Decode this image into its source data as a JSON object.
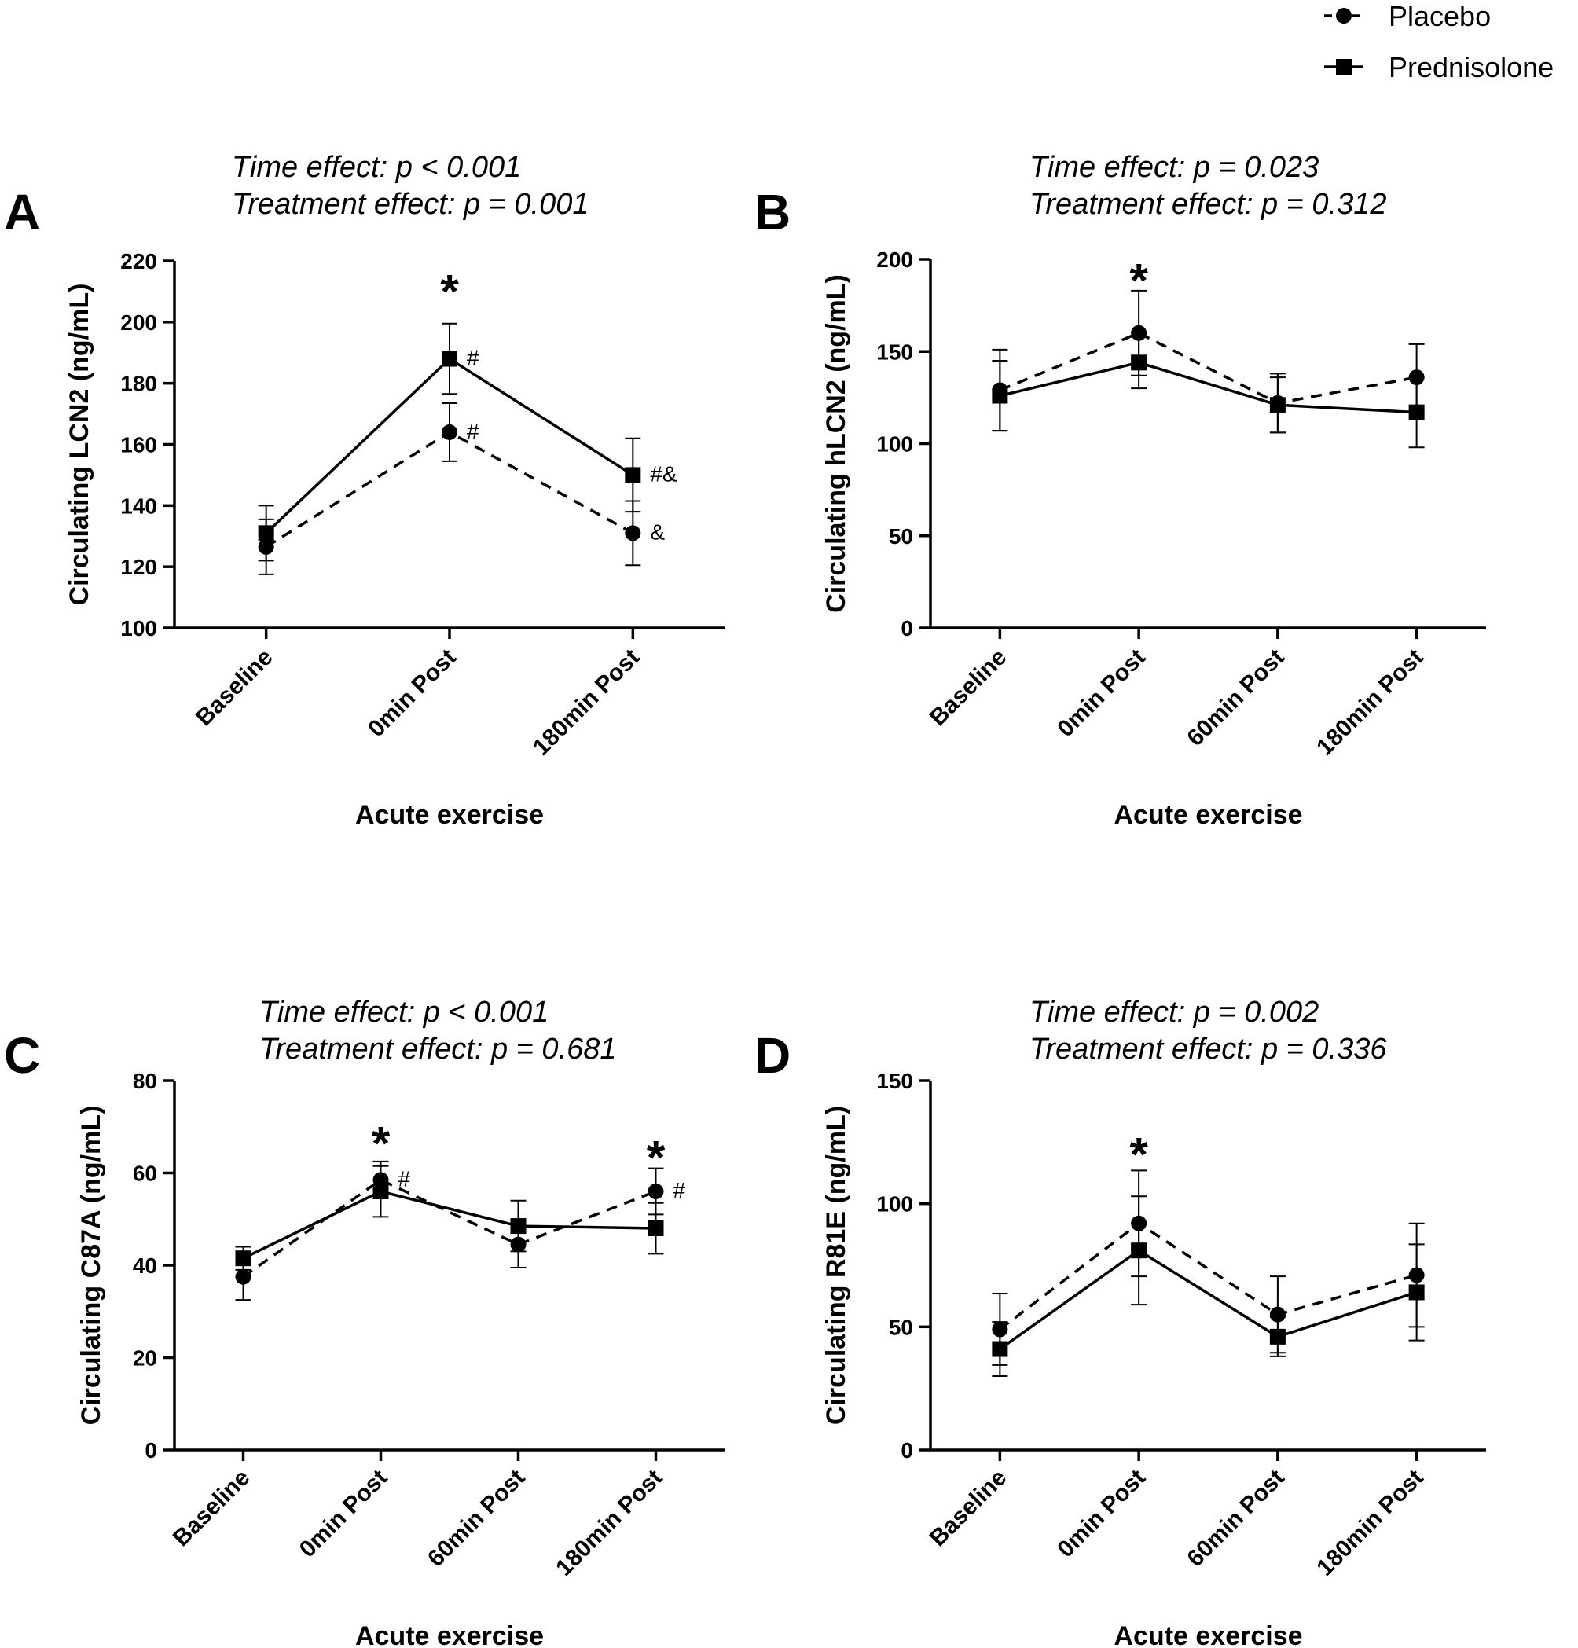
{
  "legend": [
    {
      "name": "Placebo",
      "marker": "circle",
      "line": "dashed"
    },
    {
      "name": "Prednisolone",
      "marker": "square",
      "line": "solid"
    }
  ],
  "chart_data": [
    {
      "panel": "A",
      "type": "line",
      "stats": [
        "Time effect: p < 0.001",
        "Treatment effect: p = 0.001"
      ],
      "ylabel": "Circulating LCN2 (ng/mL)",
      "xlabel": "Acute exercise",
      "categories": [
        "Baseline",
        "0min Post",
        "180min Post"
      ],
      "ylim": [
        100,
        220
      ],
      "yticks": [
        100,
        120,
        140,
        160,
        180,
        200,
        220
      ],
      "series": [
        {
          "name": "Placebo",
          "values": [
            126.5,
            164,
            131
          ],
          "err": [
            9,
            9.5,
            10.5
          ]
        },
        {
          "name": "Prednisolone",
          "values": [
            131,
            188,
            150
          ],
          "err": [
            9,
            11.5,
            12
          ]
        }
      ],
      "stars": [
        {
          "cat": 1,
          "y": 214
        }
      ],
      "marks": [
        {
          "cat": 1,
          "y": 188,
          "text": "#"
        },
        {
          "cat": 1,
          "y": 164,
          "text": "#"
        },
        {
          "cat": 2,
          "y": 150,
          "text": "#&"
        },
        {
          "cat": 2,
          "y": 131,
          "text": "&"
        }
      ]
    },
    {
      "panel": "B",
      "type": "line",
      "stats": [
        "Time effect: p = 0.023",
        "Treatment effect: p = 0.312"
      ],
      "ylabel": "Circulating hLCN2 (ng/mL)",
      "xlabel": "Acute exercise",
      "categories": [
        "Baseline",
        "0min Post",
        "60min Post",
        "180min Post"
      ],
      "ylim": [
        0,
        200
      ],
      "yticks": [
        0,
        50,
        100,
        150,
        200
      ],
      "series": [
        {
          "name": "Placebo",
          "values": [
            129,
            160,
            122,
            136
          ],
          "err": [
            22,
            23,
            16,
            18
          ]
        },
        {
          "name": "Prednisolone",
          "values": [
            126,
            144,
            121,
            117
          ],
          "err": [
            19,
            14,
            15,
            19
          ]
        }
      ],
      "stars": [
        {
          "cat": 1,
          "y": 195
        }
      ],
      "marks": []
    },
    {
      "panel": "C",
      "type": "line",
      "stats": [
        "Time effect: p < 0.001",
        "Treatment effect: p = 0.681"
      ],
      "ylabel": "Circulating C87A (ng/mL)",
      "xlabel": "Acute exercise",
      "categories": [
        "Baseline",
        "0min Post",
        "60min Post",
        "180min Post"
      ],
      "ylim": [
        0,
        80
      ],
      "yticks": [
        0,
        20,
        40,
        60,
        80
      ],
      "series": [
        {
          "name": "Placebo",
          "values": [
            37.5,
            58.5,
            44.5,
            56
          ],
          "err": [
            5,
            4,
            5,
            5
          ]
        },
        {
          "name": "Prednisolone",
          "values": [
            41.5,
            56,
            48.5,
            48
          ],
          "err": [
            2.5,
            5.5,
            5.5,
            5.5
          ]
        }
      ],
      "stars": [
        {
          "cat": 1,
          "y": 69
        },
        {
          "cat": 3,
          "y": 66
        }
      ],
      "marks": [
        {
          "cat": 1,
          "y": 58.5,
          "text": "#"
        },
        {
          "cat": 3,
          "y": 56,
          "text": "#"
        }
      ]
    },
    {
      "panel": "D",
      "type": "line",
      "stats": [
        "Time effect: p = 0.002",
        "Treatment effect: p = 0.336"
      ],
      "ylabel": "Circulating R81E (ng/mL)",
      "xlabel": "Acute exercise",
      "categories": [
        "Baseline",
        "0min Post",
        "60min Post",
        "180min Post"
      ],
      "ylim": [
        0,
        150
      ],
      "yticks": [
        0,
        50,
        100,
        150
      ],
      "series": [
        {
          "name": "Placebo",
          "values": [
            49,
            92,
            55,
            71
          ],
          "err": [
            14.5,
            21.5,
            15.5,
            21
          ]
        },
        {
          "name": "Prednisolone",
          "values": [
            41,
            81,
            46,
            64
          ],
          "err": [
            11,
            22,
            8,
            19.5
          ]
        }
      ],
      "stars": [
        {
          "cat": 1,
          "y": 125
        }
      ],
      "marks": []
    }
  ]
}
